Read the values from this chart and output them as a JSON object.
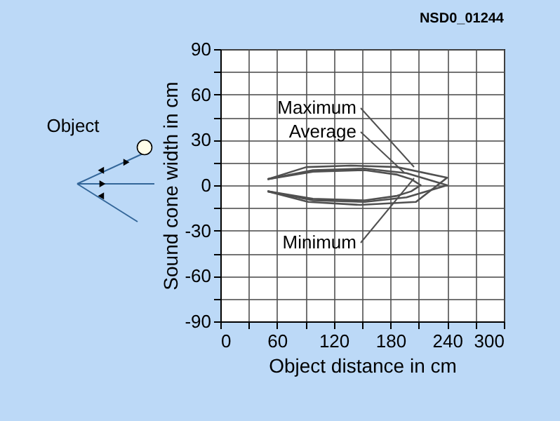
{
  "chart_data": {
    "type": "line",
    "xlabel": "Object distance in cm",
    "ylabel": "Sound cone width in cm",
    "annotations": [
      "NSD0_01244",
      "Object"
    ],
    "series": [
      {
        "name": "Maximum",
        "color": "#505050",
        "x": [
          50,
          91,
          138,
          187,
          240,
          207,
          148,
          93,
          50
        ],
        "values": [
          4,
          12,
          13,
          12,
          5,
          -11,
          -13,
          -11,
          -4
        ]
      },
      {
        "name": "Average",
        "color": "#505050",
        "x": [
          50,
          98,
          153,
          197,
          240,
          197,
          153,
          98,
          50
        ],
        "values": [
          4,
          10,
          11,
          8,
          0,
          -8,
          -11,
          -10,
          -4
        ]
      },
      {
        "name": "Minimum",
        "color": "#505050",
        "x": [
          50,
          98,
          153,
          187,
          202,
          212,
          202,
          187,
          153,
          98,
          50
        ],
        "values": [
          4,
          9,
          10,
          7,
          4,
          0,
          -4,
          -7,
          -10,
          -9,
          -4
        ]
      }
    ],
    "xlim": [
      0,
      300
    ],
    "ylim": [
      -90,
      90
    ],
    "xticks": [
      0,
      {
        "value": 30,
        "label": null
      },
      60,
      {
        "value": 90,
        "label": null
      },
      120,
      {
        "value": 150,
        "label": null
      },
      180,
      {
        "value": 210,
        "label": null
      },
      240,
      {
        "value": 270,
        "label": null
      },
      300
    ],
    "yticks": [
      -90,
      {
        "value": -75,
        "label": null
      },
      -60,
      {
        "value": -45,
        "label": null
      },
      -30,
      {
        "value": -15,
        "label": null
      },
      0,
      {
        "value": 15,
        "label": null
      },
      30,
      {
        "value": 45,
        "label": null
      },
      60,
      {
        "value": 75,
        "label": null
      },
      90
    ],
    "grid": true,
    "legend": false,
    "marker": "none",
    "line_style": "solid"
  }
}
